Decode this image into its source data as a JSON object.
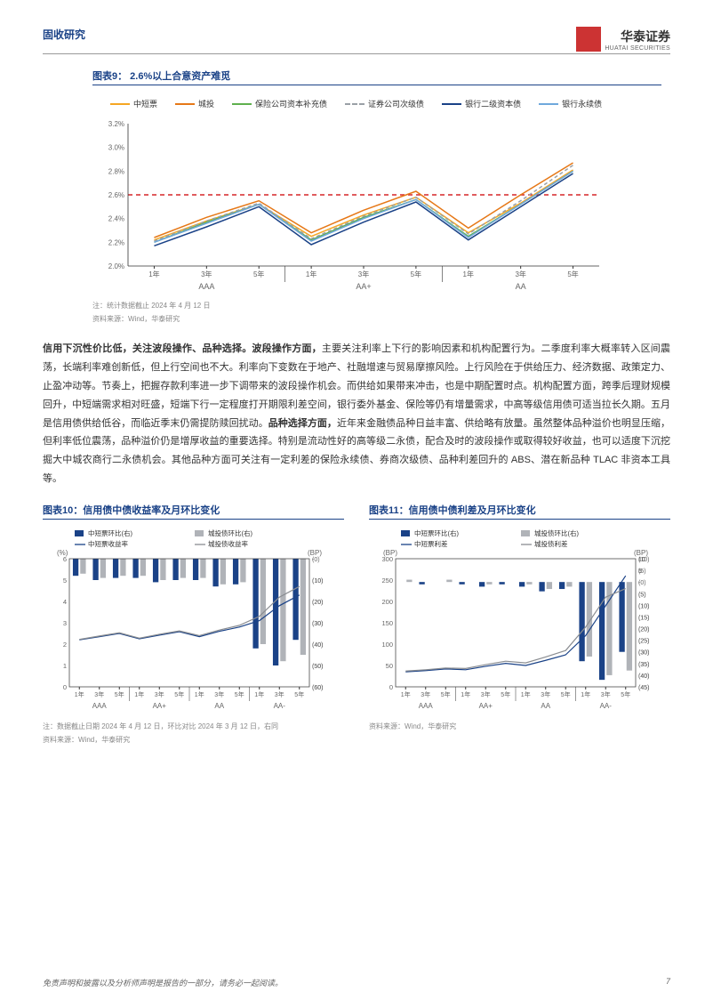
{
  "header": {
    "left": "固收研究",
    "brand_cn": "华泰证券",
    "brand_en": "HUATAI SECURITIES"
  },
  "chart9": {
    "title": "图表9：  2.6%以上合意资产难觅",
    "series": [
      {
        "name": "中短票",
        "color": "#f5a623",
        "dash": "none"
      },
      {
        "name": "城投",
        "color": "#e67817",
        "dash": "none"
      },
      {
        "name": "保险公司资本补充债",
        "color": "#5fb04e",
        "dash": "none"
      },
      {
        "name": "证券公司次级债",
        "color": "#9aa0a6",
        "dash": "4,3"
      },
      {
        "name": "银行二级资本债",
        "color": "#1a4287",
        "dash": "none"
      },
      {
        "name": "银行永续债",
        "color": "#6fa8dc",
        "dash": "none"
      }
    ],
    "yticks": [
      "2.0%",
      "2.2%",
      "2.4%",
      "2.6%",
      "2.8%",
      "3.0%",
      "3.2%"
    ],
    "ymin": 2.0,
    "ymax": 3.2,
    "refline": 2.6,
    "refcolor": "#d62728",
    "x_sub": [
      "1年",
      "3年",
      "5年",
      "1年",
      "3年",
      "5年",
      "1年",
      "3年",
      "5年"
    ],
    "x_grp": [
      "AAA",
      "AA+",
      "AA"
    ],
    "data": {
      "中短票": [
        2.22,
        2.38,
        2.52,
        2.25,
        2.43,
        2.58,
        2.28,
        2.53,
        2.81
      ],
      "城投": [
        2.24,
        2.41,
        2.55,
        2.28,
        2.47,
        2.63,
        2.32,
        2.6,
        2.87
      ],
      "保险公司资本补充债": [
        2.2,
        2.37,
        2.52,
        2.22,
        2.41,
        2.56,
        2.25,
        2.52,
        2.8
      ],
      "证券公司次级债": [
        2.21,
        2.38,
        2.53,
        2.23,
        2.42,
        2.58,
        2.27,
        2.55,
        2.85
      ],
      "银行二级资本债": [
        2.17,
        2.33,
        2.5,
        2.18,
        2.37,
        2.54,
        2.22,
        2.5,
        2.78
      ],
      "银行永续债": [
        2.2,
        2.36,
        2.52,
        2.21,
        2.4,
        2.56,
        2.24,
        2.52,
        2.8
      ]
    },
    "note1": "注：统计数据截止 2024 年 4 月 12 日",
    "note2": "资料来源：Wind，华泰研究"
  },
  "body": {
    "lead": "信用下沉性价比低，关注波段操作、品种选择。波段操作方面，",
    "p1": "主要关注利率上下行的影响因素和机构配置行为。二季度利率大概率转入区间震荡，长端利率难创新低，但上行空间也不大。利率向下变数在于地产、社融增速与贸易摩擦风险。上行风险在于供给压力、经济数据、政策定力、止盈冲动等。节奏上，把握存款利率进一步下调带来的波段操作机会。而供给如果带来冲击，也是中期配置时点。机构配置方面，跨季后理财规模回升，中短端需求相对旺盛，短端下行一定程度打开期限利差空间，银行委外基金、保险等仍有增量需求，中高等级信用债可适当拉长久期。五月是信用债供给低谷，而临近季末仍需提防赎回扰动。",
    "lead2": "品种选择方面，",
    "p2": "近年来金融债品种日益丰富、供给略有放量。虽然整体品种溢价也明显压缩，但利率低位震荡，品种溢价仍是增厚收益的重要选择。特别是流动性好的高等级二永债，配合及时的波段操作或取得较好收益，也可以适度下沉挖掘大中城农商行二永债机会。其他品种方面可关注有一定利差的保险永续债、券商次级债、品种利差回升的 ABS、潜在新品种 TLAC 非资本工具等。"
  },
  "chart10": {
    "title": "图表10：信用债中债收益率及月环比变化",
    "legend": [
      {
        "name": "中短票环比(右)",
        "type": "bar",
        "color": "#1a4287"
      },
      {
        "name": "城投债环比(右)",
        "type": "bar",
        "color": "#b0b3b8"
      },
      {
        "name": "中短票收益率",
        "type": "line",
        "color": "#1a4287"
      },
      {
        "name": "城投债收益率",
        "type": "line",
        "color": "#8a8d91"
      }
    ],
    "yL_label": "(%)",
    "yR_label": "(BP)",
    "yL": [
      0,
      1,
      2,
      3,
      4,
      5,
      6
    ],
    "yR": [
      0,
      -10,
      -20,
      -30,
      -40,
      -50,
      -60
    ],
    "x_sub": [
      "1年",
      "3年",
      "5年",
      "1年",
      "3年",
      "5年",
      "1年",
      "3年",
      "5年",
      "1年",
      "3年",
      "5年"
    ],
    "x_grp": [
      "AAA",
      "AA+",
      "AA",
      "AA-"
    ],
    "bars_a": [
      -8,
      -10,
      -9,
      -9,
      -11,
      -10,
      -10,
      -13,
      -12,
      -42,
      -50,
      -38
    ],
    "bars_b": [
      -7,
      -9,
      -8,
      -8,
      -10,
      -9,
      -9,
      -12,
      -11,
      -40,
      -48,
      -45
    ],
    "line_a": [
      2.2,
      2.35,
      2.5,
      2.25,
      2.42,
      2.58,
      2.35,
      2.6,
      2.8,
      3.1,
      3.8,
      4.3
    ],
    "line_b": [
      2.22,
      2.38,
      2.53,
      2.28,
      2.46,
      2.62,
      2.4,
      2.66,
      2.88,
      3.3,
      4.2,
      4.7
    ],
    "note1": "注：数据截止日期 2024 年 4 月 12 日，环比对比 2024 年 3 月 12 日，右同",
    "note2": "资料来源：Wind，华泰研究"
  },
  "chart11": {
    "title": "图表11：信用债中债利差及月环比变化",
    "legend": [
      {
        "name": "中短票环比(右)",
        "type": "bar",
        "color": "#1a4287"
      },
      {
        "name": "城投债环比(右)",
        "type": "bar",
        "color": "#b0b3b8"
      },
      {
        "name": "中短票利差",
        "type": "line",
        "color": "#1a4287"
      },
      {
        "name": "城投债利差",
        "type": "line",
        "color": "#8a8d91"
      }
    ],
    "yL_label": "(BP)",
    "yR_label": "(BP)",
    "yL": [
      0,
      50,
      100,
      150,
      200,
      250,
      300
    ],
    "yR": [
      10,
      5,
      0,
      -5,
      -10,
      -15,
      -20,
      -25,
      -30,
      -35,
      -40,
      -45
    ],
    "x_sub": [
      "1年",
      "3年",
      "5年",
      "1年",
      "3年",
      "5年",
      "1年",
      "3年",
      "5年",
      "1年",
      "3年",
      "5年"
    ],
    "x_grp": [
      "AAA",
      "AA+",
      "AA",
      "AA-"
    ],
    "bars_a": [
      0,
      -1,
      0,
      -1,
      -2,
      -1,
      -2,
      -4,
      -3,
      -34,
      -42,
      -30
    ],
    "bars_b": [
      1,
      0,
      1,
      0,
      -1,
      0,
      -1,
      -3,
      -2,
      -32,
      -40,
      -38
    ],
    "line_a": [
      35,
      38,
      42,
      40,
      48,
      55,
      50,
      62,
      75,
      120,
      190,
      260
    ],
    "line_b": [
      37,
      40,
      44,
      43,
      52,
      60,
      56,
      70,
      85,
      140,
      210,
      230
    ],
    "note": "资料来源：Wind，华泰研究"
  },
  "footer": {
    "disclaimer": "免责声明和披露以及分析师声明是报告的一部分，请务必一起阅读。",
    "page": "7"
  }
}
